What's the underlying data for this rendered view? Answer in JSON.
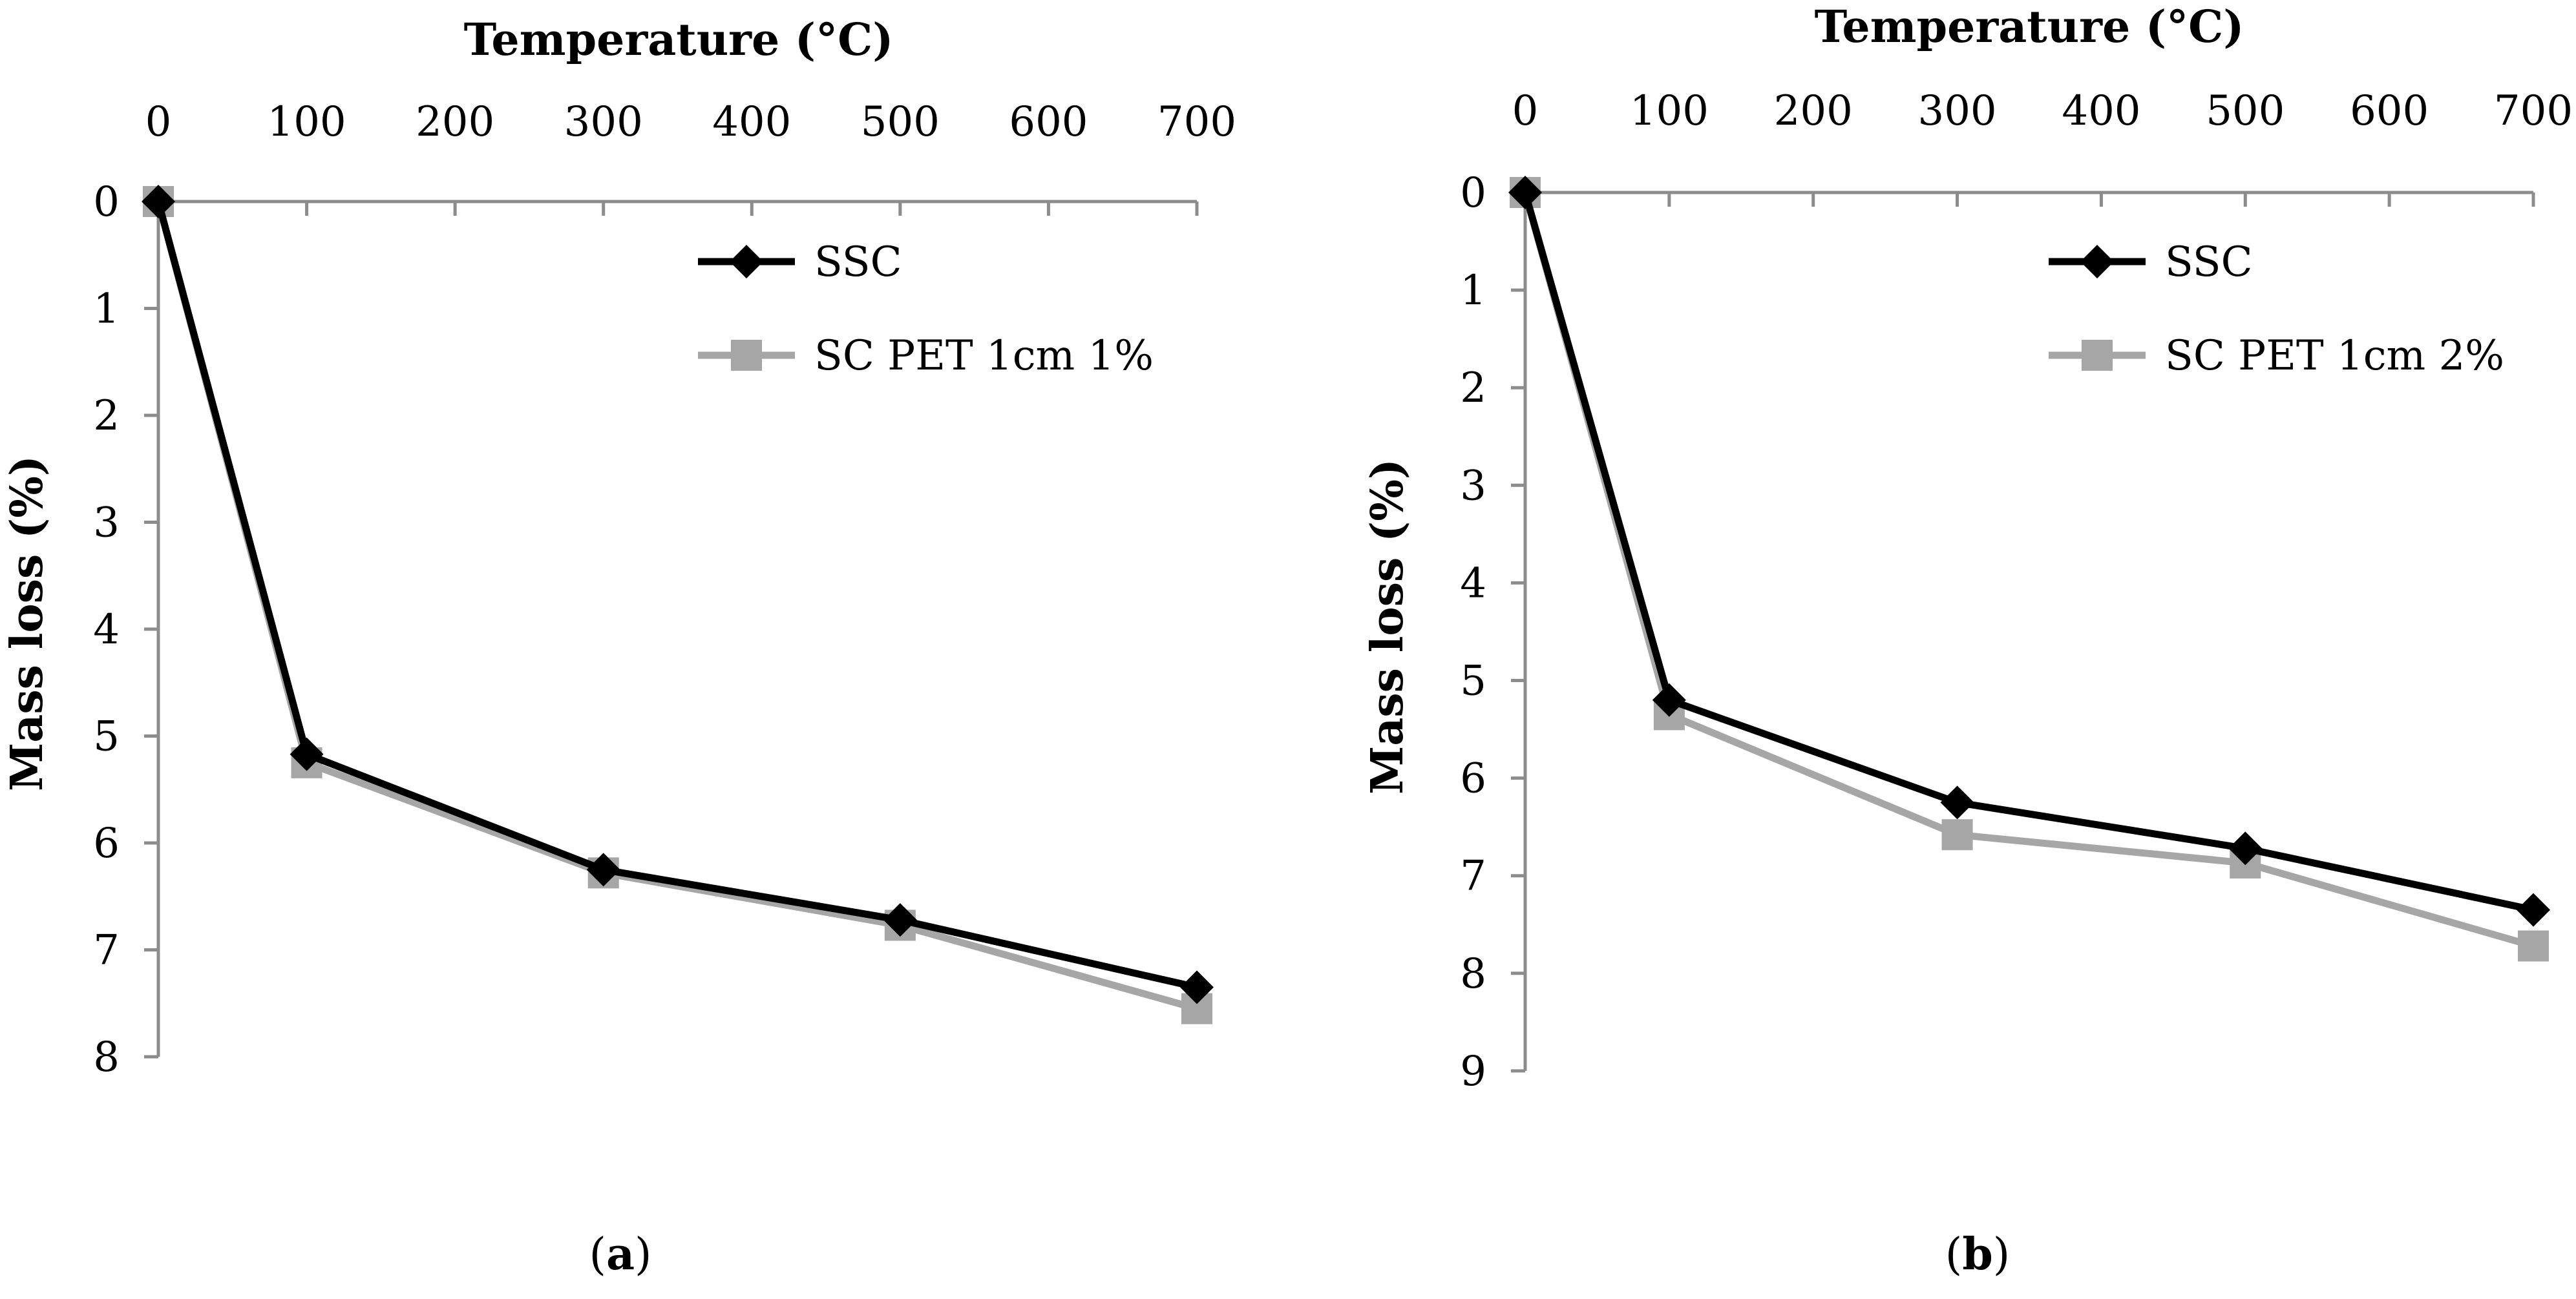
{
  "colors": {
    "axis": "#8c8c8c",
    "text": "#000000"
  },
  "chart_data": [
    {
      "type": "line",
      "panel_label": "a",
      "xlabel": "Temperature (°C)",
      "ylabel": "Mass loss (%)",
      "xlim": [
        0,
        700
      ],
      "ylim": [
        0,
        8
      ],
      "y_reversed": true,
      "x_axis_position": "top",
      "x_ticks": [
        0,
        100,
        200,
        300,
        400,
        500,
        600,
        700
      ],
      "y_ticks": [
        0,
        1,
        2,
        3,
        4,
        5,
        6,
        7,
        8
      ],
      "x_tick_labels": [
        "0",
        "100",
        "200",
        "300",
        "400",
        "500",
        "600",
        "700"
      ],
      "y_tick_labels": [
        "0",
        "1",
        "2",
        "3",
        "4",
        "5",
        "6",
        "7",
        "8"
      ],
      "grid": false,
      "legend_position": "top-right",
      "x": [
        0,
        100,
        300,
        500,
        700
      ],
      "series": [
        {
          "name": "SSC",
          "values": [
            0,
            5.17,
            6.25,
            6.72,
            7.35
          ],
          "color": "#000000",
          "marker": "diamond"
        },
        {
          "name": "SC PET 1cm  1%",
          "values": [
            0,
            5.25,
            6.28,
            6.77,
            7.55
          ],
          "color": "#a6a6a6",
          "marker": "square"
        }
      ]
    },
    {
      "type": "line",
      "panel_label": "b",
      "xlabel": "Temperature (°C)",
      "ylabel": "Mass loss (%)",
      "xlim": [
        0,
        700
      ],
      "ylim": [
        0,
        9
      ],
      "y_reversed": true,
      "x_axis_position": "top",
      "x_ticks": [
        0,
        100,
        200,
        300,
        400,
        500,
        600,
        700
      ],
      "y_ticks": [
        0,
        1,
        2,
        3,
        4,
        5,
        6,
        7,
        8,
        9
      ],
      "x_tick_labels": [
        "0",
        "100",
        "200",
        "300",
        "400",
        "500",
        "600",
        "700"
      ],
      "y_tick_labels": [
        "0",
        "1",
        "2",
        "3",
        "4",
        "5",
        "6",
        "7",
        "8",
        "9"
      ],
      "grid": false,
      "legend_position": "top-right",
      "x": [
        0,
        100,
        300,
        500,
        700
      ],
      "series": [
        {
          "name": "SSC",
          "values": [
            0,
            5.2,
            6.25,
            6.72,
            7.35
          ],
          "color": "#000000",
          "marker": "diamond"
        },
        {
          "name": "SC PET 1cm 2%",
          "values": [
            0,
            5.35,
            6.58,
            6.87,
            7.72
          ],
          "color": "#a6a6a6",
          "marker": "square"
        }
      ]
    }
  ]
}
